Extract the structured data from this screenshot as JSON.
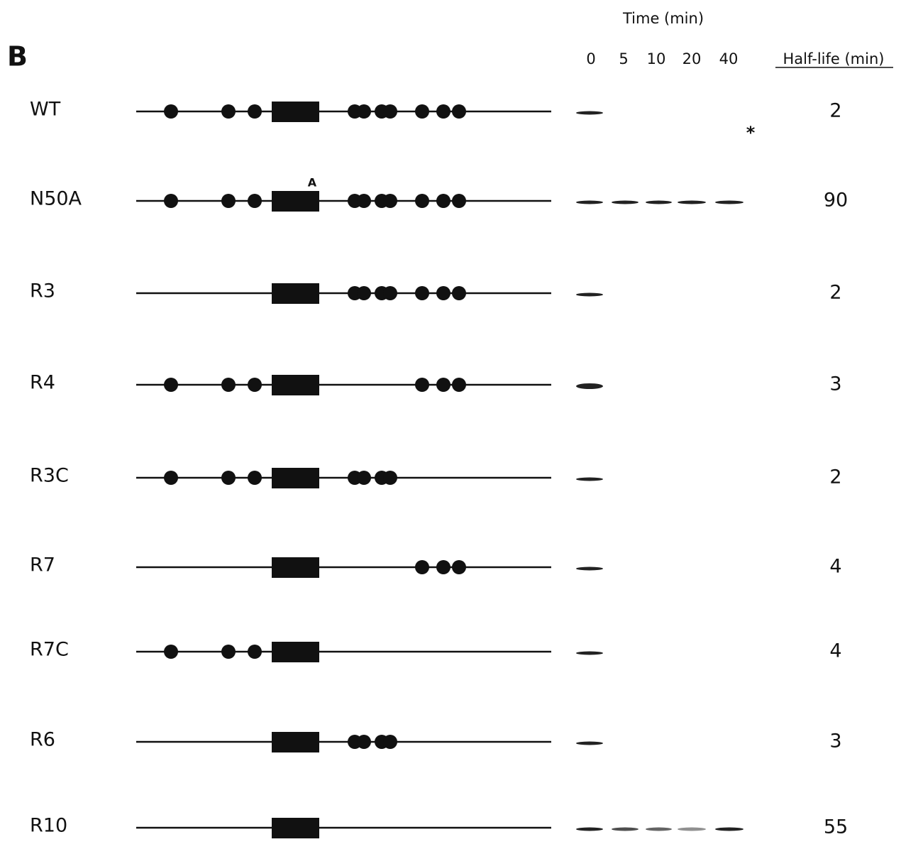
{
  "panel": "B",
  "time_header": "Time (min)",
  "time_points": [
    "0",
    "5",
    "10",
    "20",
    "40"
  ],
  "half_life_header": "Half-life (min)",
  "annotations": {
    "mutation": "A",
    "asterisk": "*"
  },
  "rows": [
    {
      "name": "WT",
      "half_life": "2"
    },
    {
      "name": "N50A",
      "half_life": "90"
    },
    {
      "name": "R3",
      "half_life": "2"
    },
    {
      "name": "R4",
      "half_life": "3"
    },
    {
      "name": "R3C",
      "half_life": "2"
    },
    {
      "name": "R7",
      "half_life": "4"
    },
    {
      "name": "R7C",
      "half_life": "4"
    },
    {
      "name": "R6",
      "half_life": "3"
    },
    {
      "name": "R10",
      "half_life": "55"
    }
  ]
}
